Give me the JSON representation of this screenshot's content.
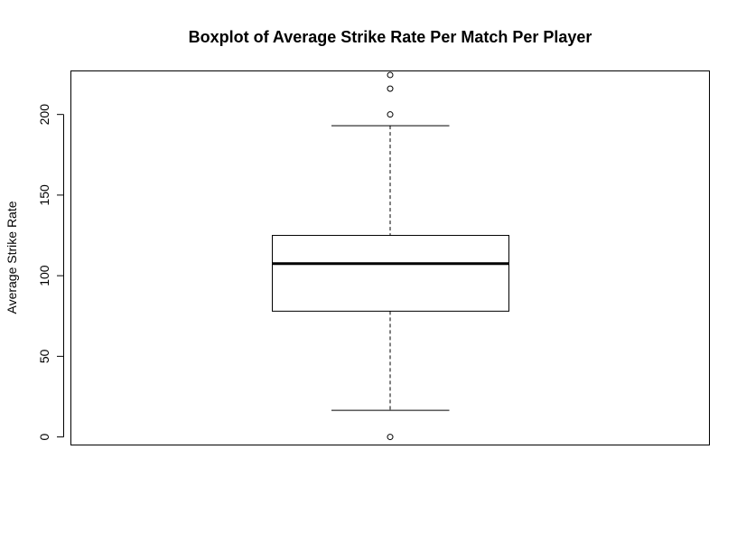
{
  "chart_data": {
    "type": "boxplot",
    "title": "Boxplot of Average Strike Rate Per Match Per Player",
    "xlabel": "",
    "ylabel": "Average Strike Rate",
    "ylim": [
      -5,
      227
    ],
    "yticks": [
      0,
      50,
      100,
      150,
      200
    ],
    "grid": false,
    "series": [
      {
        "whisker_low": 16.5,
        "q1": 78,
        "median": 107.5,
        "q3": 125,
        "whisker_high": 193,
        "outliers": [
          0,
          200,
          216,
          224.5
        ]
      }
    ]
  }
}
